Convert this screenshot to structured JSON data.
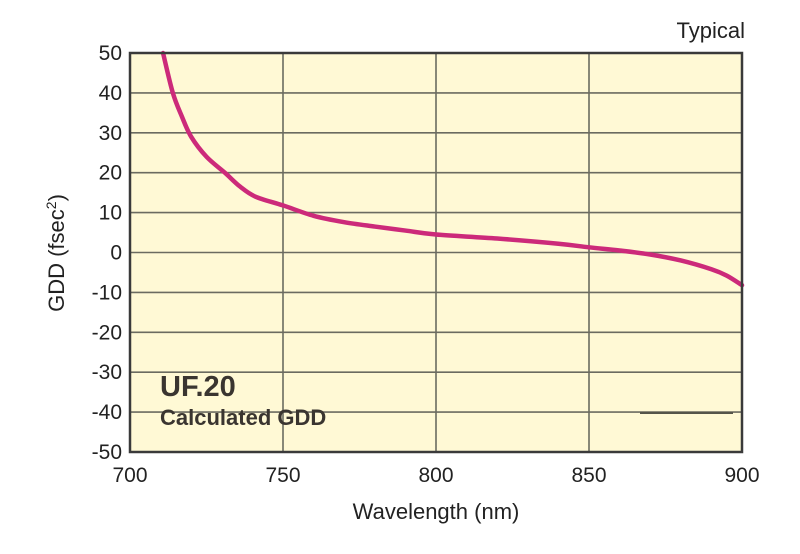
{
  "chart_data": {
    "type": "line",
    "title": "UF.20",
    "subtitle": "Calculated GDD",
    "annotation": "Typical",
    "xlabel": "Wavelength (nm)",
    "ylabel": "GDD (fsec",
    "ylabel_sup": "2",
    "ylabel_end": ")",
    "xlim": [
      700,
      900
    ],
    "ylim": [
      -50,
      50
    ],
    "grid": true,
    "xticks": [
      700,
      750,
      800,
      850,
      900
    ],
    "yticks": [
      50,
      40,
      30,
      20,
      10,
      0,
      -10,
      -20,
      -30,
      -40,
      -50
    ],
    "series": [
      {
        "name": "GDD",
        "color": "#cc2a7a",
        "x": [
          710.8,
          714,
          717,
          720,
          725,
          731,
          736,
          741,
          750,
          760,
          770,
          780,
          790,
          800,
          820,
          840,
          850,
          860,
          870,
          880,
          890,
          895,
          900
        ],
        "y": [
          50,
          40,
          34,
          29,
          24,
          20,
          16.5,
          14,
          11.8,
          9.2,
          7.6,
          6.5,
          5.5,
          4.5,
          3.5,
          2.2,
          1.3,
          0.5,
          -0.5,
          -2,
          -4.2,
          -5.8,
          -8.2
        ]
      }
    ],
    "colors": {
      "background": "#fff9d5",
      "grid": "#6b6b60",
      "frame": "#3a3a3a"
    }
  }
}
